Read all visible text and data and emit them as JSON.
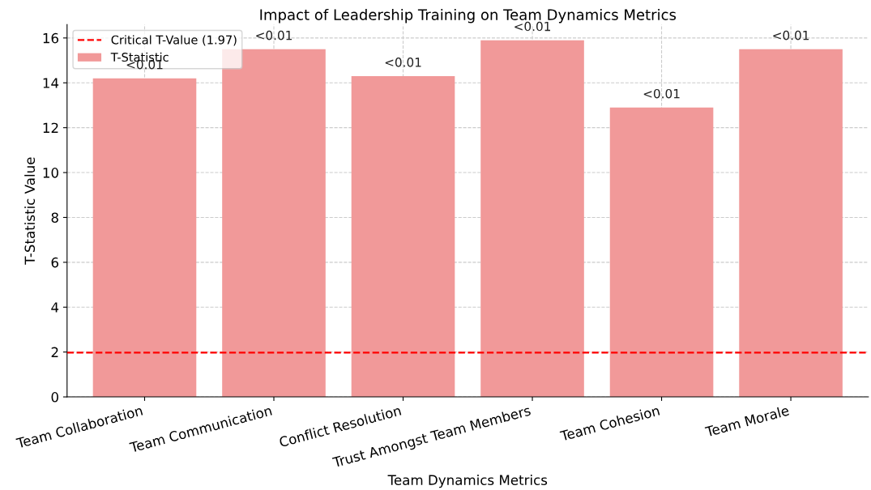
{
  "chart_data": {
    "type": "bar",
    "title": "Impact of Leadership Training on Team Dynamics Metrics",
    "xlabel": "Team Dynamics Metrics",
    "ylabel": "T-Statistic Value",
    "categories": [
      "Team Collaboration",
      "Team Communication",
      "Conflict Resolution",
      "Trust Amongst Team Members",
      "Team Cohesion",
      "Team Morale"
    ],
    "series": [
      {
        "name": "T-Statistic",
        "color": "#f19999",
        "values": [
          14.2,
          15.5,
          14.3,
          15.9,
          12.9,
          15.5
        ],
        "value_labels": [
          "<0.01",
          "<0.01",
          "<0.01",
          "<0.01",
          "<0.01",
          "<0.01"
        ]
      }
    ],
    "ref_lines": [
      {
        "axis": "y",
        "value": 1.97,
        "label": "Critical T-Value (1.97)",
        "color": "#ff0000",
        "line_style": "dashed"
      }
    ],
    "ylim": [
      0,
      16.6
    ],
    "yticks": [
      0,
      2,
      4,
      6,
      8,
      10,
      12,
      14,
      16
    ],
    "grid": true,
    "legend": "top left"
  }
}
